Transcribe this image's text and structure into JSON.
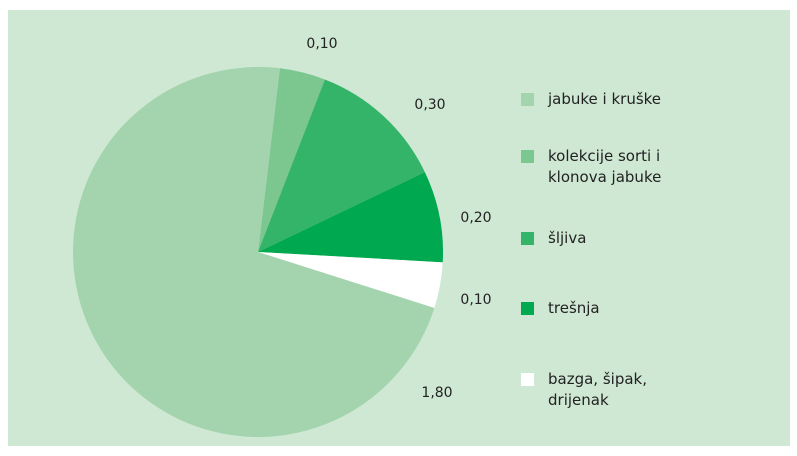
{
  "chart_data": {
    "type": "pie",
    "categories": [
      "jabuke i kruške",
      "kolekcije sorti i klonova jabuke",
      "šljiva",
      "trešnja",
      "bazga, šipak, drijenak"
    ],
    "values": [
      1.8,
      0.1,
      0.3,
      0.2,
      0.1
    ],
    "value_labels": [
      "1,80",
      "0,10",
      "0,30",
      "0,20",
      "0,10"
    ],
    "colors": [
      "#a3d4ae",
      "#7cc68f",
      "#34b469",
      "#00a84f",
      "#ffffff"
    ],
    "legend": "right"
  }
}
